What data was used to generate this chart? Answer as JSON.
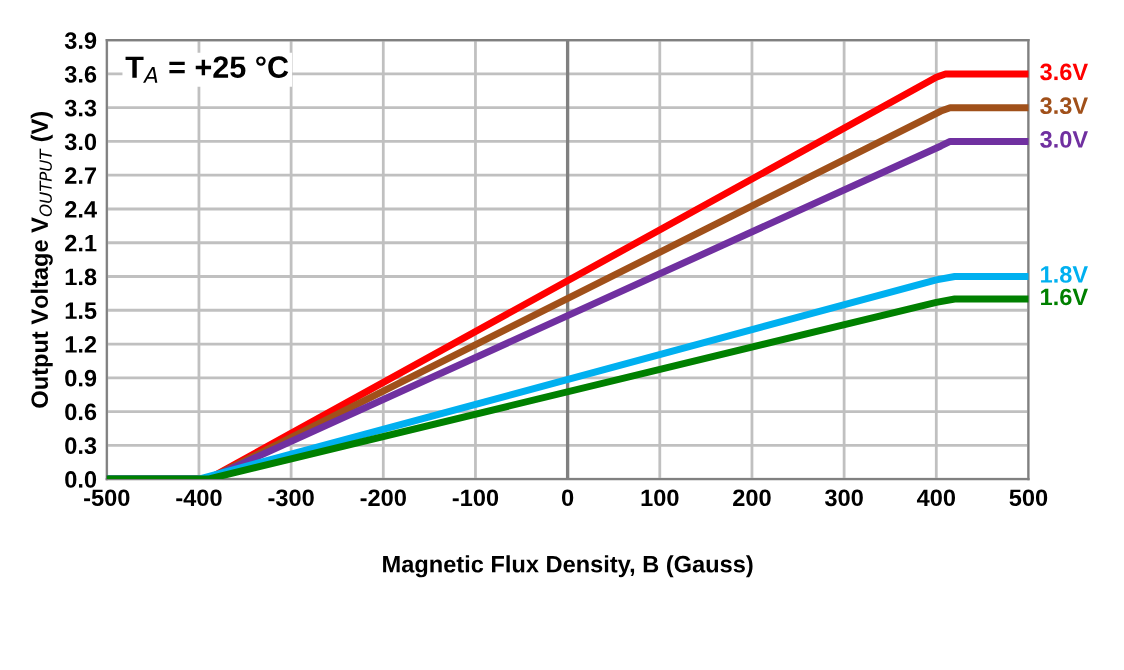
{
  "chart_data": {
    "type": "line",
    "xlabel": "Magnetic Flux Density, B (Gauss)",
    "ylabel": "Output Voltage V$_{OUTPUT}$ (V)",
    "annotations": [
      "T$_{A}$ = +25 °C"
    ],
    "xlim": [
      -500,
      500
    ],
    "xticks": [
      -500,
      -400,
      -300,
      -200,
      -100,
      0,
      100,
      200,
      300,
      400,
      500
    ],
    "ylim": [
      0,
      3.9
    ],
    "yticks": [
      {
        "value": 0,
        "label": "0.0"
      },
      {
        "value": 0.3,
        "label": "0.3"
      },
      {
        "value": 0.6,
        "label": "0.6"
      },
      {
        "value": 0.9,
        "label": "0.9"
      },
      {
        "value": 1.2,
        "label": "1.2"
      },
      {
        "value": 1.5,
        "label": "1.5"
      },
      {
        "value": 1.8,
        "label": "1.8"
      },
      {
        "value": 2.1,
        "label": "2.1"
      },
      {
        "value": 2.4,
        "label": "2.4"
      },
      {
        "value": 2.7,
        "label": "2.7"
      },
      {
        "value": 3.0,
        "label": "3.0"
      },
      {
        "value": 3.3,
        "label": "3.3"
      },
      {
        "value": 3.6,
        "label": "3.6"
      },
      {
        "value": 3.9,
        "label": "3.9"
      }
    ],
    "grid": true,
    "legend": false,
    "ref_lines": [
      {
        "axis": "x",
        "value": 0,
        "label": null,
        "color": "#808080"
      }
    ],
    "series": [
      {
        "name": "3.6V",
        "color": "#ff0000",
        "x": [
          -500,
          -390,
          400,
          410,
          500
        ],
        "values": [
          0,
          0,
          3.57,
          3.6,
          3.6
        ]
      },
      {
        "name": "3.3V",
        "color": "#a0501a",
        "x": [
          -500,
          -390,
          405,
          415,
          500
        ],
        "values": [
          0,
          0,
          3.27,
          3.3,
          3.3
        ]
      },
      {
        "name": "3.0V",
        "color": "#7030a0",
        "x": [
          -500,
          -390,
          405,
          415,
          500
        ],
        "values": [
          0,
          0,
          2.96,
          3.0,
          3.0
        ]
      },
      {
        "name": "1.8V",
        "color": "#00b0f0",
        "x": [
          -500,
          -400,
          400,
          420,
          500
        ],
        "values": [
          0,
          0,
          1.77,
          1.8,
          1.8
        ]
      },
      {
        "name": "1.6V",
        "color": "#008000",
        "x": [
          -500,
          -390,
          400,
          420,
          500
        ],
        "values": [
          0,
          0,
          1.57,
          1.6,
          1.6
        ]
      }
    ]
  }
}
